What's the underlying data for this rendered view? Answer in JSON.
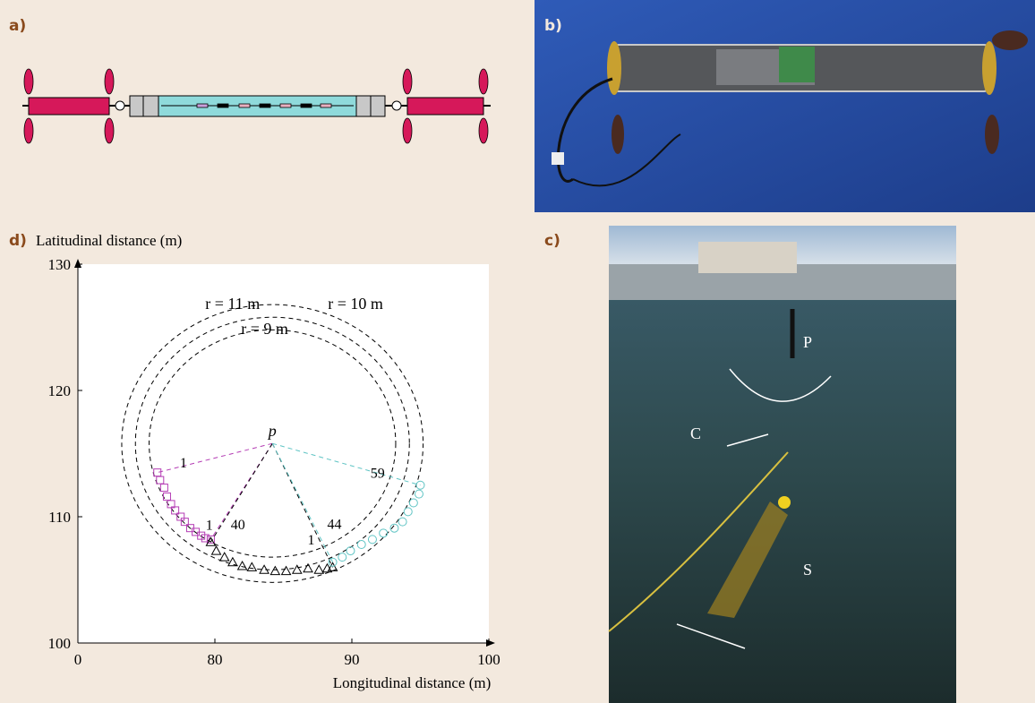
{
  "panels": {
    "a": "a)",
    "b": "b)",
    "c": "c)",
    "d": "d)"
  },
  "photo_c_labels": [
    "P",
    "C",
    "S"
  ],
  "chart_data": {
    "type": "scatter",
    "y_axis_label": "Latitudinal distance (m)",
    "x_axis_label": "Longitudinal distance (m)",
    "x_origin_label": "0",
    "xlim": [
      70,
      100
    ],
    "xticks": [
      80,
      90,
      100
    ],
    "ylim": [
      100,
      130
    ],
    "yticks": [
      100,
      110,
      120,
      130
    ],
    "center": {
      "x": 84.2,
      "y": 115.8,
      "label": "p"
    },
    "circles": [
      {
        "radius": 11,
        "label": "r = 11 m"
      },
      {
        "radius": 10,
        "label": "r = 10 m"
      },
      {
        "radius": 9,
        "label": "r = 9 m"
      }
    ],
    "series": [
      {
        "marker": "square",
        "color": "#b43cb4",
        "start_label": "1",
        "end_label": "40",
        "x": [
          75.8,
          76.0,
          76.3,
          76.5,
          76.8,
          77.1,
          77.5,
          77.8,
          78.2,
          78.6,
          79.0,
          79.3,
          79.7
        ],
        "values": [
          113.5,
          112.9,
          112.3,
          111.6,
          111.0,
          110.5,
          110.0,
          109.6,
          109.1,
          108.8,
          108.5,
          108.3,
          108.2
        ]
      },
      {
        "marker": "triangle",
        "color": "#000000",
        "start_label": "1",
        "end_label": "44",
        "x": [
          79.7,
          80.1,
          80.7,
          81.3,
          82.0,
          82.7,
          83.6,
          84.4,
          85.2,
          86.0,
          86.8,
          87.6,
          88.2,
          88.6
        ],
        "values": [
          108.0,
          107.3,
          106.8,
          106.4,
          106.1,
          106.0,
          105.8,
          105.7,
          105.7,
          105.8,
          105.9,
          105.8,
          105.9,
          106.0
        ]
      },
      {
        "marker": "circle",
        "color": "#5fc4c4",
        "start_label": "1",
        "end_label": "59",
        "x": [
          88.6,
          89.3,
          89.9,
          90.7,
          91.5,
          92.3,
          93.1,
          93.7,
          94.1,
          94.5,
          94.9,
          95.0
        ],
        "values": [
          106.4,
          106.8,
          107.3,
          107.8,
          108.2,
          108.7,
          109.1,
          109.6,
          110.4,
          111.1,
          111.8,
          112.5
        ]
      }
    ]
  }
}
